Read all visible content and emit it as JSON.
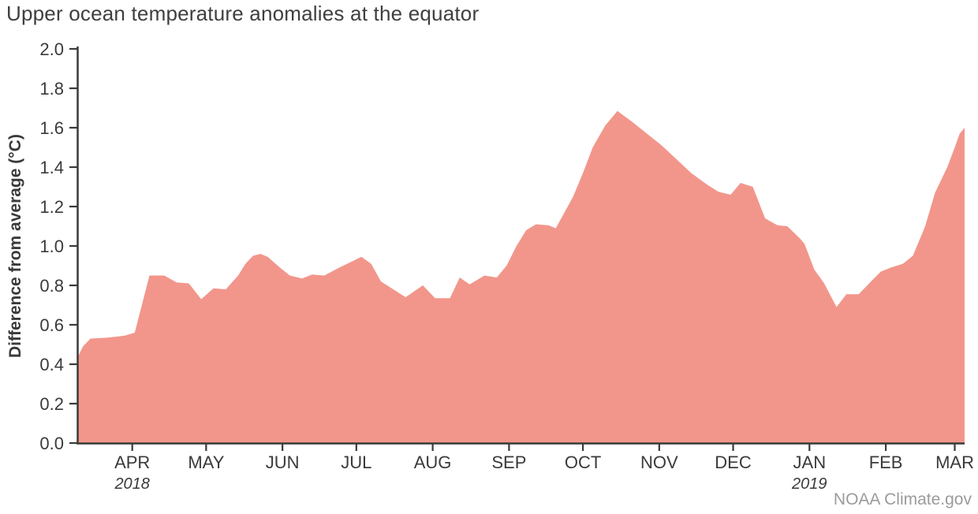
{
  "credit": "NOAA Climate.gov",
  "colors": {
    "area_fill": "#F2968B",
    "axis": "#3A3A3A",
    "tick_text": "#3A3A3A",
    "title_text": "#3F3F3F",
    "credit_text": "#9B9B9B"
  },
  "chart_data": {
    "type": "area",
    "title": "Upper ocean temperature anomalies at the equator",
    "xlabel": "",
    "ylabel": "Difference from average (°C)",
    "ylim": [
      0.0,
      2.0
    ],
    "y_tick_step": 0.2,
    "y_tick_labels": [
      "0.0",
      "0.2",
      "0.4",
      "0.6",
      "0.8",
      "1.0",
      "1.2",
      "1.4",
      "1.6",
      "1.8",
      "2.0"
    ],
    "grid": false,
    "legend": false,
    "x_range": {
      "start": "2018-03-10",
      "end": "2019-03-05"
    },
    "x_ticks": [
      {
        "label": "APR",
        "date": "2018-04-01",
        "year": "2018"
      },
      {
        "label": "MAY",
        "date": "2018-05-01"
      },
      {
        "label": "JUN",
        "date": "2018-06-01"
      },
      {
        "label": "JUL",
        "date": "2018-07-01"
      },
      {
        "label": "AUG",
        "date": "2018-08-01"
      },
      {
        "label": "SEP",
        "date": "2018-09-01"
      },
      {
        "label": "OCT",
        "date": "2018-10-01"
      },
      {
        "label": "NOV",
        "date": "2018-11-01"
      },
      {
        "label": "DEC",
        "date": "2018-12-01"
      },
      {
        "label": "JAN",
        "date": "2019-01-01",
        "year": "2019"
      },
      {
        "label": "FEB",
        "date": "2019-02-01"
      },
      {
        "label": "MAR",
        "date": "2019-03-01"
      }
    ],
    "series": [
      {
        "name": "Upper ocean temperature anomaly",
        "points": [
          [
            "2018-03-10",
            0.44
          ],
          [
            "2018-03-12",
            0.49
          ],
          [
            "2018-03-15",
            0.53
          ],
          [
            "2018-03-22",
            0.535
          ],
          [
            "2018-03-29",
            0.545
          ],
          [
            "2018-04-02",
            0.56
          ],
          [
            "2018-04-08",
            0.85
          ],
          [
            "2018-04-14",
            0.85
          ],
          [
            "2018-04-19",
            0.815
          ],
          [
            "2018-04-24",
            0.81
          ],
          [
            "2018-04-29",
            0.73
          ],
          [
            "2018-05-04",
            0.785
          ],
          [
            "2018-05-09",
            0.78
          ],
          [
            "2018-05-14",
            0.85
          ],
          [
            "2018-05-17",
            0.91
          ],
          [
            "2018-05-20",
            0.95
          ],
          [
            "2018-05-23",
            0.96
          ],
          [
            "2018-05-26",
            0.945
          ],
          [
            "2018-05-31",
            0.89
          ],
          [
            "2018-06-04",
            0.85
          ],
          [
            "2018-06-09",
            0.835
          ],
          [
            "2018-06-13",
            0.855
          ],
          [
            "2018-06-18",
            0.85
          ],
          [
            "2018-06-24",
            0.89
          ],
          [
            "2018-06-29",
            0.92
          ],
          [
            "2018-07-03",
            0.945
          ],
          [
            "2018-07-07",
            0.91
          ],
          [
            "2018-07-11",
            0.82
          ],
          [
            "2018-07-16",
            0.78
          ],
          [
            "2018-07-21",
            0.74
          ],
          [
            "2018-07-28",
            0.8
          ],
          [
            "2018-08-02",
            0.735
          ],
          [
            "2018-08-08",
            0.735
          ],
          [
            "2018-08-12",
            0.84
          ],
          [
            "2018-08-16",
            0.805
          ],
          [
            "2018-08-22",
            0.85
          ],
          [
            "2018-08-27",
            0.84
          ],
          [
            "2018-08-31",
            0.9
          ],
          [
            "2018-09-04",
            1.0
          ],
          [
            "2018-09-08",
            1.08
          ],
          [
            "2018-09-12",
            1.11
          ],
          [
            "2018-09-17",
            1.105
          ],
          [
            "2018-09-20",
            1.09
          ],
          [
            "2018-09-27",
            1.25
          ],
          [
            "2018-10-01",
            1.37
          ],
          [
            "2018-10-05",
            1.5
          ],
          [
            "2018-10-10",
            1.61
          ],
          [
            "2018-10-15",
            1.685
          ],
          [
            "2018-10-21",
            1.63
          ],
          [
            "2018-10-27",
            1.57
          ],
          [
            "2018-11-02",
            1.51
          ],
          [
            "2018-11-08",
            1.44
          ],
          [
            "2018-11-14",
            1.37
          ],
          [
            "2018-11-20",
            1.315
          ],
          [
            "2018-11-25",
            1.275
          ],
          [
            "2018-11-30",
            1.26
          ],
          [
            "2018-12-04",
            1.32
          ],
          [
            "2018-12-09",
            1.3
          ],
          [
            "2018-12-14",
            1.14
          ],
          [
            "2018-12-19",
            1.105
          ],
          [
            "2018-12-23",
            1.1
          ],
          [
            "2018-12-28",
            1.04
          ],
          [
            "2018-12-30",
            1.01
          ],
          [
            "2019-01-03",
            0.88
          ],
          [
            "2019-01-07",
            0.81
          ],
          [
            "2019-01-12",
            0.69
          ],
          [
            "2019-01-16",
            0.755
          ],
          [
            "2019-01-21",
            0.755
          ],
          [
            "2019-01-26",
            0.82
          ],
          [
            "2019-01-30",
            0.87
          ],
          [
            "2019-02-03",
            0.89
          ],
          [
            "2019-02-08",
            0.91
          ],
          [
            "2019-02-12",
            0.95
          ],
          [
            "2019-02-17",
            1.1
          ],
          [
            "2019-02-21",
            1.27
          ],
          [
            "2019-02-26",
            1.4
          ],
          [
            "2019-03-01",
            1.5
          ],
          [
            "2019-03-03",
            1.57
          ],
          [
            "2019-03-05",
            1.6
          ]
        ]
      }
    ]
  }
}
